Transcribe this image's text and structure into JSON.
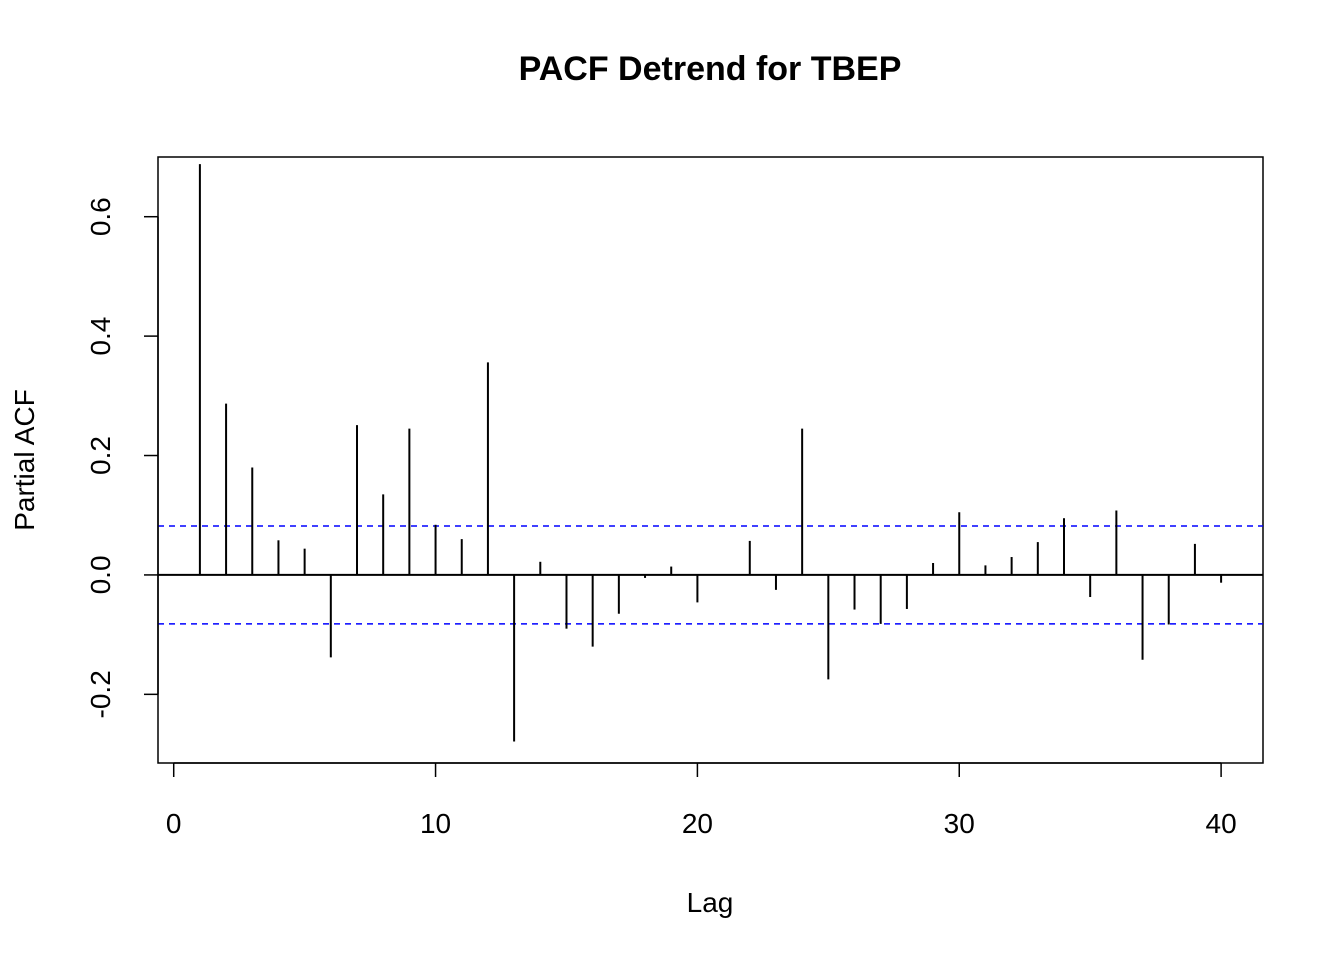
{
  "chart_data": {
    "type": "bar",
    "title": "PACF Detrend for TBEP",
    "xlabel": "Lag",
    "ylabel": "Partial ACF",
    "xlim": [
      -0.6,
      41.6
    ],
    "ylim": [
      -0.315,
      0.7
    ],
    "x_ticks": [
      0,
      10,
      20,
      30,
      40
    ],
    "x_tick_labels": [
      "0",
      "10",
      "20",
      "30",
      "40"
    ],
    "y_ticks": [
      -0.2,
      0.0,
      0.2,
      0.4,
      0.6
    ],
    "y_tick_labels": [
      "-0.2",
      "0.0",
      "0.2",
      "0.4",
      "0.6"
    ],
    "confidence_bound": 0.082,
    "confidence_color": "#0000ff",
    "grid": false,
    "lags": [
      1,
      2,
      3,
      4,
      5,
      6,
      7,
      8,
      9,
      10,
      11,
      12,
      13,
      14,
      15,
      16,
      17,
      18,
      19,
      20,
      21,
      22,
      23,
      24,
      25,
      26,
      27,
      28,
      29,
      30,
      31,
      32,
      33,
      34,
      35,
      36,
      37,
      38,
      39,
      40
    ],
    "values": [
      0.688,
      0.287,
      0.18,
      0.058,
      0.044,
      -0.138,
      0.251,
      0.135,
      0.245,
      0.084,
      0.06,
      0.356,
      -0.279,
      0.022,
      -0.09,
      -0.12,
      -0.065,
      -0.005,
      0.014,
      -0.046,
      0.0,
      0.057,
      -0.025,
      0.245,
      -0.175,
      -0.058,
      -0.082,
      -0.057,
      0.02,
      0.105,
      0.016,
      0.03,
      0.055,
      0.095,
      -0.037,
      0.108,
      -0.142,
      -0.083,
      0.052,
      -0.013
    ]
  }
}
